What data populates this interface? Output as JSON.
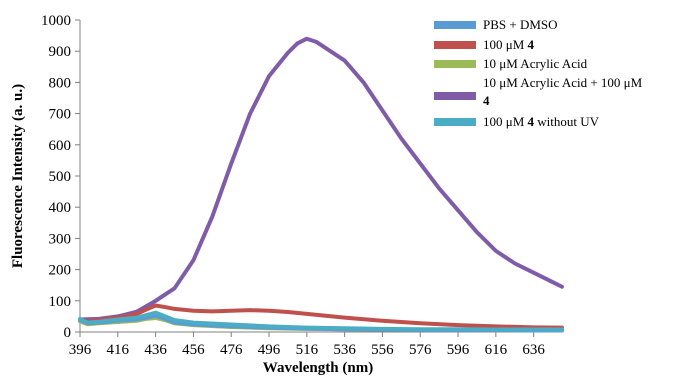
{
  "chart_data": {
    "type": "line",
    "title": "",
    "xlabel": "Wavelength (nm)",
    "ylabel": "Fluorescence Intensity (a. u.)",
    "xlim": [
      396,
      651
    ],
    "ylim": [
      0,
      1000
    ],
    "x_ticks": [
      396,
      416,
      436,
      456,
      476,
      496,
      516,
      536,
      556,
      576,
      596,
      616,
      636
    ],
    "y_ticks": [
      0,
      100,
      200,
      300,
      400,
      500,
      600,
      700,
      800,
      900,
      1000
    ],
    "grid": false,
    "legend_position": "top-right",
    "series": [
      {
        "name": "PBS + DMSO",
        "color": "#5b9bd5",
        "x": [
          396,
          400,
          406,
          416,
          426,
          431,
          436,
          441,
          446,
          456,
          476,
          496,
          516,
          536,
          556,
          576,
          596,
          616,
          636,
          651
        ],
        "y": [
          38,
          28,
          30,
          36,
          40,
          46,
          52,
          42,
          30,
          24,
          18,
          14,
          11,
          9,
          8,
          7,
          6,
          6,
          5,
          5
        ]
      },
      {
        "name": "100 μM 4",
        "name_parts": [
          "100 μM ",
          "4"
        ],
        "color": "#c0504d",
        "x": [
          396,
          400,
          406,
          416,
          426,
          431,
          436,
          441,
          446,
          456,
          466,
          476,
          486,
          496,
          506,
          516,
          526,
          536,
          556,
          576,
          596,
          616,
          636,
          651
        ],
        "y": [
          40,
          34,
          38,
          46,
          58,
          72,
          85,
          80,
          74,
          68,
          66,
          68,
          70,
          68,
          64,
          58,
          52,
          46,
          36,
          28,
          22,
          18,
          15,
          14
        ]
      },
      {
        "name": "10 μM Acrylic Acid",
        "color": "#9bbb59",
        "x": [
          396,
          400,
          406,
          416,
          426,
          431,
          436,
          441,
          446,
          456,
          476,
          496,
          516,
          536,
          556,
          576,
          596,
          616,
          636,
          651
        ],
        "y": [
          34,
          25,
          28,
          32,
          36,
          42,
          45,
          38,
          28,
          22,
          16,
          12,
          10,
          9,
          8,
          8,
          7,
          7,
          7,
          7
        ]
      },
      {
        "name": "10 μM Acrylic Acid + 100 μM 4",
        "name_line1": "10 μM Acrylic Acid + 100 μM",
        "name_line2": "4",
        "color": "#7f5ca8",
        "x": [
          396,
          406,
          416,
          426,
          436,
          446,
          456,
          466,
          476,
          486,
          496,
          506,
          511,
          516,
          521,
          526,
          536,
          546,
          556,
          566,
          576,
          586,
          596,
          606,
          616,
          626,
          636,
          646,
          651
        ],
        "y": [
          40,
          42,
          50,
          65,
          100,
          140,
          230,
          370,
          540,
          700,
          820,
          895,
          925,
          940,
          930,
          910,
          870,
          800,
          710,
          620,
          540,
          460,
          390,
          320,
          260,
          220,
          190,
          160,
          145
        ]
      },
      {
        "name": "100 μM 4 without UV",
        "name_parts": [
          "100 μM ",
          "4",
          " without UV"
        ],
        "color": "#4bacc6",
        "x": [
          396,
          400,
          406,
          416,
          426,
          431,
          436,
          441,
          446,
          456,
          476,
          496,
          516,
          536,
          556,
          576,
          596,
          616,
          636,
          651
        ],
        "y": [
          42,
          30,
          33,
          40,
          46,
          54,
          62,
          50,
          38,
          30,
          24,
          18,
          14,
          12,
          10,
          9,
          9,
          8,
          8,
          8
        ]
      }
    ]
  }
}
